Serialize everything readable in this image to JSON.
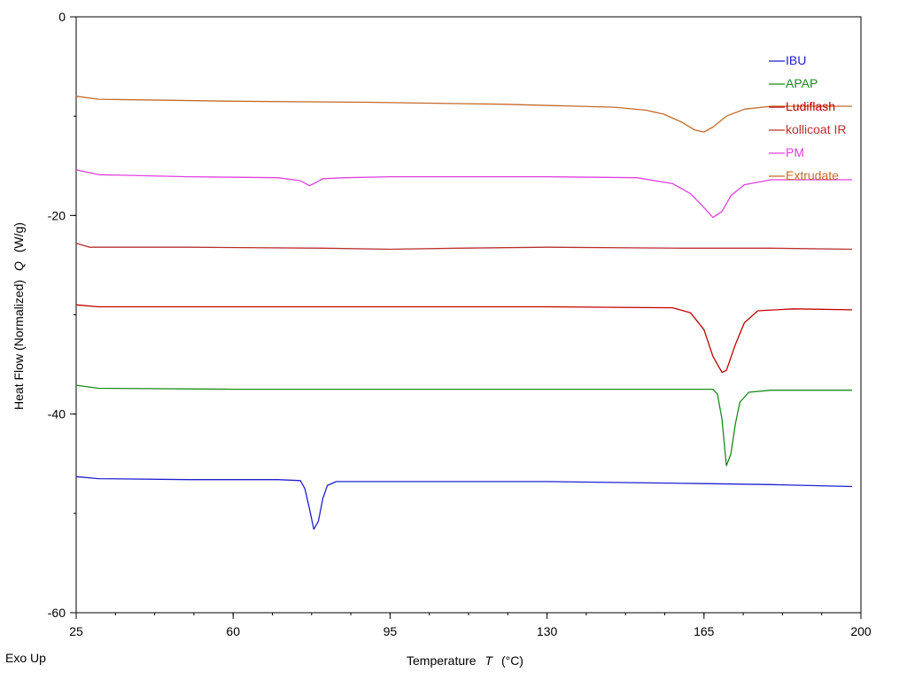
{
  "chart_data": {
    "type": "line",
    "xlabel_main": "Temperature",
    "xlabel_symbol": "T",
    "xlabel_unit": "(°C)",
    "ylabel_main": "Heat Flow (Normalized)",
    "ylabel_symbol": "Q",
    "ylabel_unit": "(W/g)",
    "corner_note": "Exo Up",
    "xlim": [
      25,
      200
    ],
    "ylim": [
      -60,
      0
    ],
    "x_ticks": [
      25,
      60,
      95,
      130,
      165,
      200
    ],
    "y_ticks": [
      0,
      -20,
      -40,
      -60
    ],
    "x_minor_step": 8.75,
    "y_minor_step": 10,
    "grid": false,
    "legend_position": "top-right",
    "series": [
      {
        "name": "IBU",
        "color": "#1f1fd0",
        "points": [
          [
            25,
            -46.3
          ],
          [
            30,
            -46.5
          ],
          [
            50,
            -46.6
          ],
          [
            70,
            -46.6
          ],
          [
            75,
            -46.7
          ],
          [
            76,
            -47.5
          ],
          [
            77,
            -49.5
          ],
          [
            78,
            -51.6
          ],
          [
            79,
            -50.8
          ],
          [
            80,
            -48.5
          ],
          [
            81,
            -47.2
          ],
          [
            83,
            -46.8
          ],
          [
            95,
            -46.8
          ],
          [
            130,
            -46.8
          ],
          [
            165,
            -47.0
          ],
          [
            180,
            -47.1
          ],
          [
            198,
            -47.3
          ]
        ]
      },
      {
        "name": "APAP",
        "color": "#1a8a1a",
        "points": [
          [
            25,
            -37.1
          ],
          [
            30,
            -37.4
          ],
          [
            60,
            -37.5
          ],
          [
            100,
            -37.5
          ],
          [
            140,
            -37.5
          ],
          [
            167,
            -37.5
          ],
          [
            168,
            -38.0
          ],
          [
            169,
            -40.5
          ],
          [
            170,
            -45.2
          ],
          [
            171,
            -44.0
          ],
          [
            172,
            -41.0
          ],
          [
            173,
            -38.8
          ],
          [
            175,
            -37.8
          ],
          [
            180,
            -37.6
          ],
          [
            198,
            -37.6
          ]
        ]
      },
      {
        "name": "Ludiflash",
        "color": "#c00000",
        "points": [
          [
            25,
            -29.0
          ],
          [
            30,
            -29.2
          ],
          [
            60,
            -29.2
          ],
          [
            100,
            -29.2
          ],
          [
            130,
            -29.2
          ],
          [
            158,
            -29.3
          ],
          [
            162,
            -29.8
          ],
          [
            165,
            -31.5
          ],
          [
            167,
            -34.2
          ],
          [
            169,
            -35.8
          ],
          [
            170,
            -35.6
          ],
          [
            172,
            -33.0
          ],
          [
            174,
            -30.8
          ],
          [
            177,
            -29.6
          ],
          [
            185,
            -29.4
          ],
          [
            198,
            -29.5
          ]
        ]
      },
      {
        "name": "kollicoat IR",
        "color": "#b83030",
        "points": [
          [
            25,
            -22.8
          ],
          [
            28,
            -23.2
          ],
          [
            50,
            -23.2
          ],
          [
            80,
            -23.3
          ],
          [
            95,
            -23.4
          ],
          [
            110,
            -23.3
          ],
          [
            130,
            -23.2
          ],
          [
            160,
            -23.3
          ],
          [
            180,
            -23.3
          ],
          [
            198,
            -23.4
          ]
        ]
      },
      {
        "name": "PM",
        "color": "#e040e0",
        "points": [
          [
            25,
            -15.4
          ],
          [
            30,
            -15.9
          ],
          [
            50,
            -16.1
          ],
          [
            70,
            -16.2
          ],
          [
            75,
            -16.5
          ],
          [
            77,
            -17.0
          ],
          [
            78,
            -16.8
          ],
          [
            80,
            -16.3
          ],
          [
            85,
            -16.2
          ],
          [
            95,
            -16.1
          ],
          [
            130,
            -16.1
          ],
          [
            150,
            -16.2
          ],
          [
            158,
            -16.8
          ],
          [
            162,
            -17.8
          ],
          [
            165,
            -19.2
          ],
          [
            167,
            -20.2
          ],
          [
            169,
            -19.6
          ],
          [
            171,
            -18.0
          ],
          [
            174,
            -16.9
          ],
          [
            180,
            -16.4
          ],
          [
            198,
            -16.4
          ]
        ]
      },
      {
        "name": "Extrudate",
        "color": "#c46a28",
        "points": [
          [
            25,
            -8.0
          ],
          [
            30,
            -8.3
          ],
          [
            60,
            -8.5
          ],
          [
            90,
            -8.6
          ],
          [
            120,
            -8.8
          ],
          [
            145,
            -9.1
          ],
          [
            152,
            -9.4
          ],
          [
            156,
            -9.8
          ],
          [
            160,
            -10.6
          ],
          [
            163,
            -11.4
          ],
          [
            165,
            -11.6
          ],
          [
            167,
            -11.1
          ],
          [
            170,
            -10.0
          ],
          [
            174,
            -9.3
          ],
          [
            180,
            -9.0
          ],
          [
            198,
            -9.0
          ]
        ]
      }
    ]
  }
}
